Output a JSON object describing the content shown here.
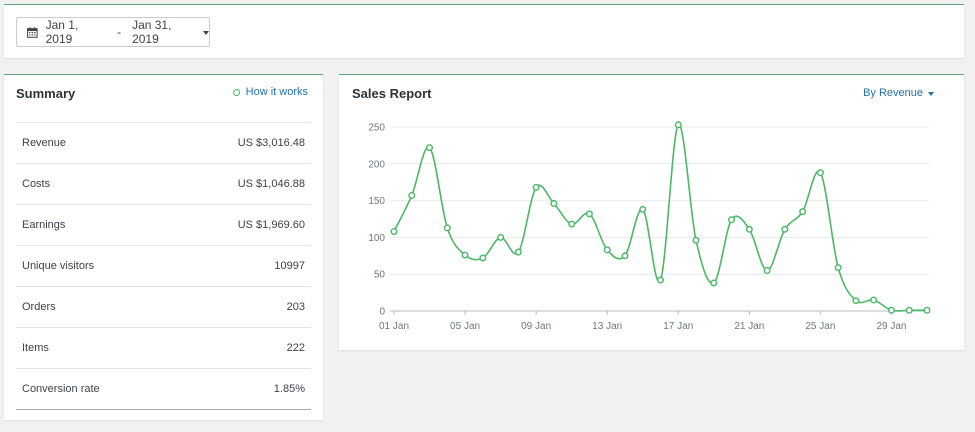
{
  "date_range": {
    "start": "Jan 1, 2019",
    "separator": "-",
    "end": "Jan 31, 2019"
  },
  "summary": {
    "title": "Summary",
    "how_it_works": "How it works",
    "rows": [
      {
        "label": "Revenue",
        "value": "US $3,016.48"
      },
      {
        "label": "Costs",
        "value": "US $1,046.88"
      },
      {
        "label": "Earnings",
        "value": "US $1,969.60"
      },
      {
        "label": "Unique visitors",
        "value": "10997"
      },
      {
        "label": "Orders",
        "value": "203"
      },
      {
        "label": "Items",
        "value": "222"
      },
      {
        "label": "Conversion rate",
        "value": "1.85%"
      }
    ]
  },
  "sales_report": {
    "title": "Sales Report",
    "selector_label": "By Revenue"
  },
  "chart_data": {
    "type": "line",
    "title": "Sales Report",
    "x": [
      "01 Jan",
      "02 Jan",
      "03 Jan",
      "04 Jan",
      "05 Jan",
      "06 Jan",
      "07 Jan",
      "08 Jan",
      "09 Jan",
      "10 Jan",
      "11 Jan",
      "12 Jan",
      "13 Jan",
      "14 Jan",
      "15 Jan",
      "16 Jan",
      "17 Jan",
      "18 Jan",
      "19 Jan",
      "20 Jan",
      "21 Jan",
      "22 Jan",
      "23 Jan",
      "24 Jan",
      "25 Jan",
      "26 Jan",
      "27 Jan",
      "28 Jan",
      "29 Jan",
      "30 Jan",
      "31 Jan"
    ],
    "x_tick_labels": [
      "01 Jan",
      "05 Jan",
      "09 Jan",
      "13 Jan",
      "17 Jan",
      "21 Jan",
      "25 Jan",
      "29 Jan"
    ],
    "series": [
      {
        "values": [
          108,
          157,
          222,
          113,
          76,
          72,
          100,
          80,
          168,
          146,
          118,
          132,
          83,
          75,
          138,
          42,
          253,
          96,
          38,
          124,
          111,
          55,
          111,
          135,
          188,
          59,
          14,
          15,
          1,
          1,
          1
        ]
      }
    ],
    "ylim": [
      0,
      250
    ],
    "y_ticks": [
      0,
      50,
      100,
      150,
      200,
      250
    ],
    "xlabel": "",
    "ylabel": "",
    "grid": true,
    "line_color": "#4ab866"
  }
}
